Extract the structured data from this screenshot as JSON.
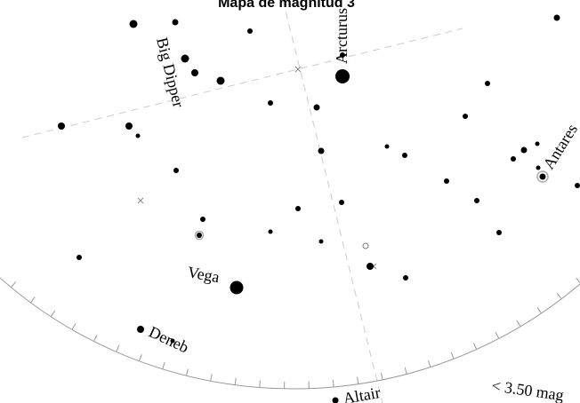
{
  "title": "Mapa de magnitud 3",
  "labels": {
    "arcturus": "Arcturus",
    "big_dipper": "Big Dipper",
    "antares": "Antares",
    "vega": "Vega",
    "deneb": "Deneb",
    "altair": "Altair",
    "limit": "< 3.50 mag"
  }
}
